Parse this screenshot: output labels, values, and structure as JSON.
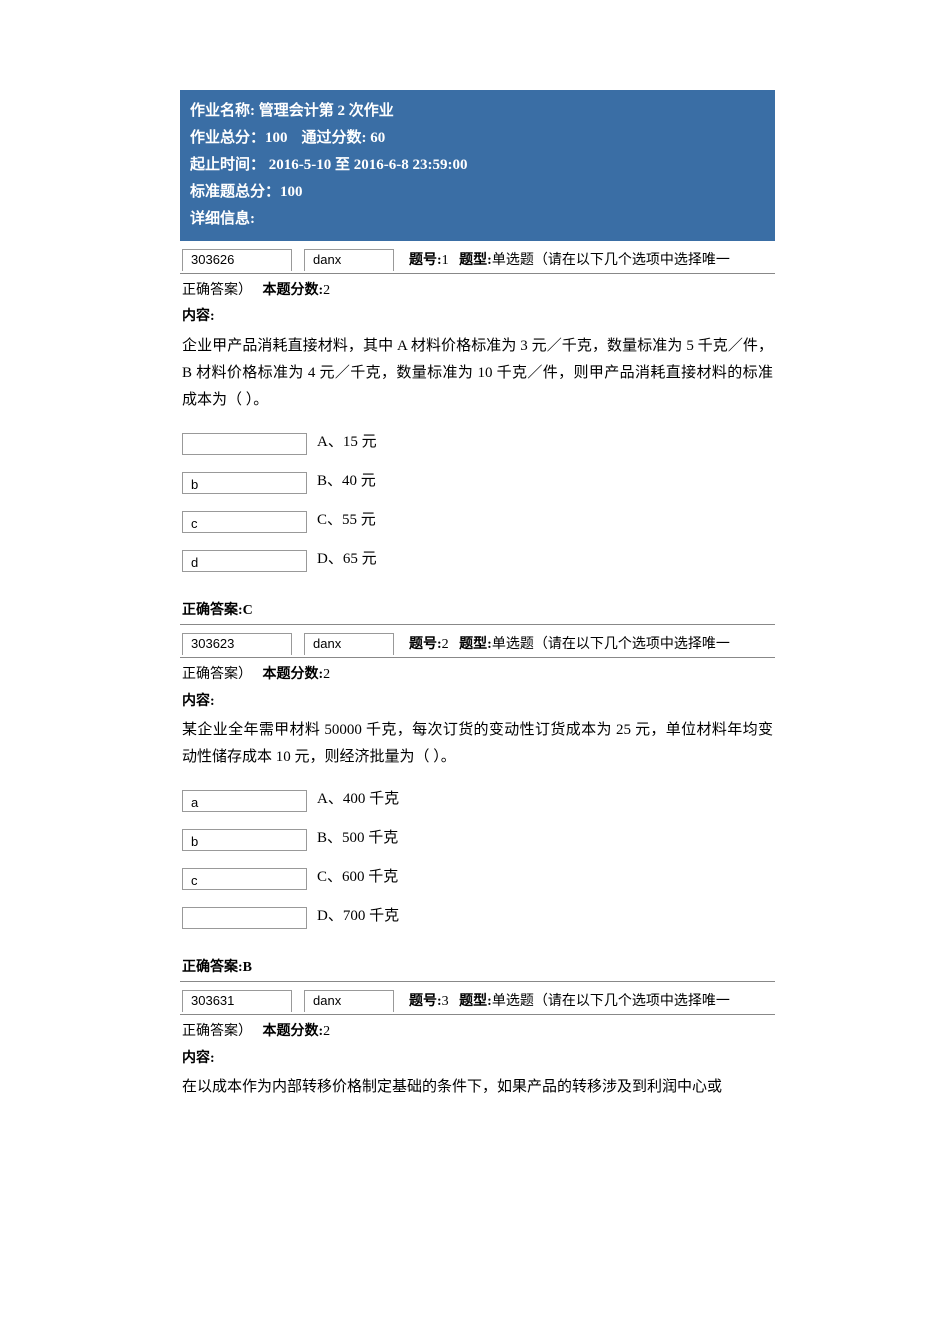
{
  "header": {
    "name_label": "作业名称:",
    "name_value": "管理会计第 2 次作业",
    "total_label": "作业总分：",
    "total_value": "100",
    "pass_label": "通过分数:",
    "pass_value": "60",
    "time_label": "起止时间：",
    "time_value": " 2016-5-10  至  2016-6-8 23:59:00",
    "std_label": "标准题总分：",
    "std_value": "100",
    "detail_label": "详细信息:"
  },
  "meta_labels": {
    "qnum": "题号:",
    "qtype_label": "题型:",
    "qtype_value": "单选题（请在以下几个选项中选择唯一",
    "cont": "正确答案）",
    "score_label": "本题分数:",
    "content_label": "内容:",
    "answer_label": "正确答案:"
  },
  "questions": [
    {
      "code": "303626",
      "type": "danx",
      "num": "1",
      "score": "2",
      "content": "企业甲产品消耗直接材料，其中 A 材料价格标准为 3 元／千克，数量标准为 5 千克／件，B 材料价格标准为 4 元／千克，数量标准为 10 千克／件，则甲产品消耗直接材料的标准成本为（ ）。",
      "options": [
        {
          "box": "",
          "label": "A、15 元"
        },
        {
          "box": "b",
          "label": "B、40 元"
        },
        {
          "box": "c",
          "label": "C、55 元"
        },
        {
          "box": "d",
          "label": "D、65 元"
        }
      ],
      "answer": "C"
    },
    {
      "code": "303623",
      "type": "danx",
      "num": "2",
      "score": "2",
      "content": "某企业全年需甲材料 50000 千克，每次订货的变动性订货成本为 25 元，单位材料年均变动性储存成本 10 元，则经济批量为（ ）。",
      "options": [
        {
          "box": "a",
          "label": "A、400 千克"
        },
        {
          "box": "b",
          "label": "B、500 千克"
        },
        {
          "box": "c",
          "label": "C、600 千克"
        },
        {
          "box": "",
          "label": "D、700 千克"
        }
      ],
      "answer": "B"
    },
    {
      "code": "303631",
      "type": "danx",
      "num": "3",
      "score": "2",
      "content": "在以成本作为内部转移价格制定基础的条件下，如果产品的转移涉及到利润中心或",
      "options": [],
      "answer": ""
    }
  ],
  "colors": {
    "header_bg": "#3a6ea5",
    "header_text": "#ffffff",
    "border": "#888888",
    "box_border": "#999999",
    "text": "#000000",
    "background": "#ffffff"
  },
  "typography": {
    "body_fontsize": 15,
    "label_fontsize": 14,
    "box_fontsize": 13,
    "font_family": "SimSun"
  }
}
